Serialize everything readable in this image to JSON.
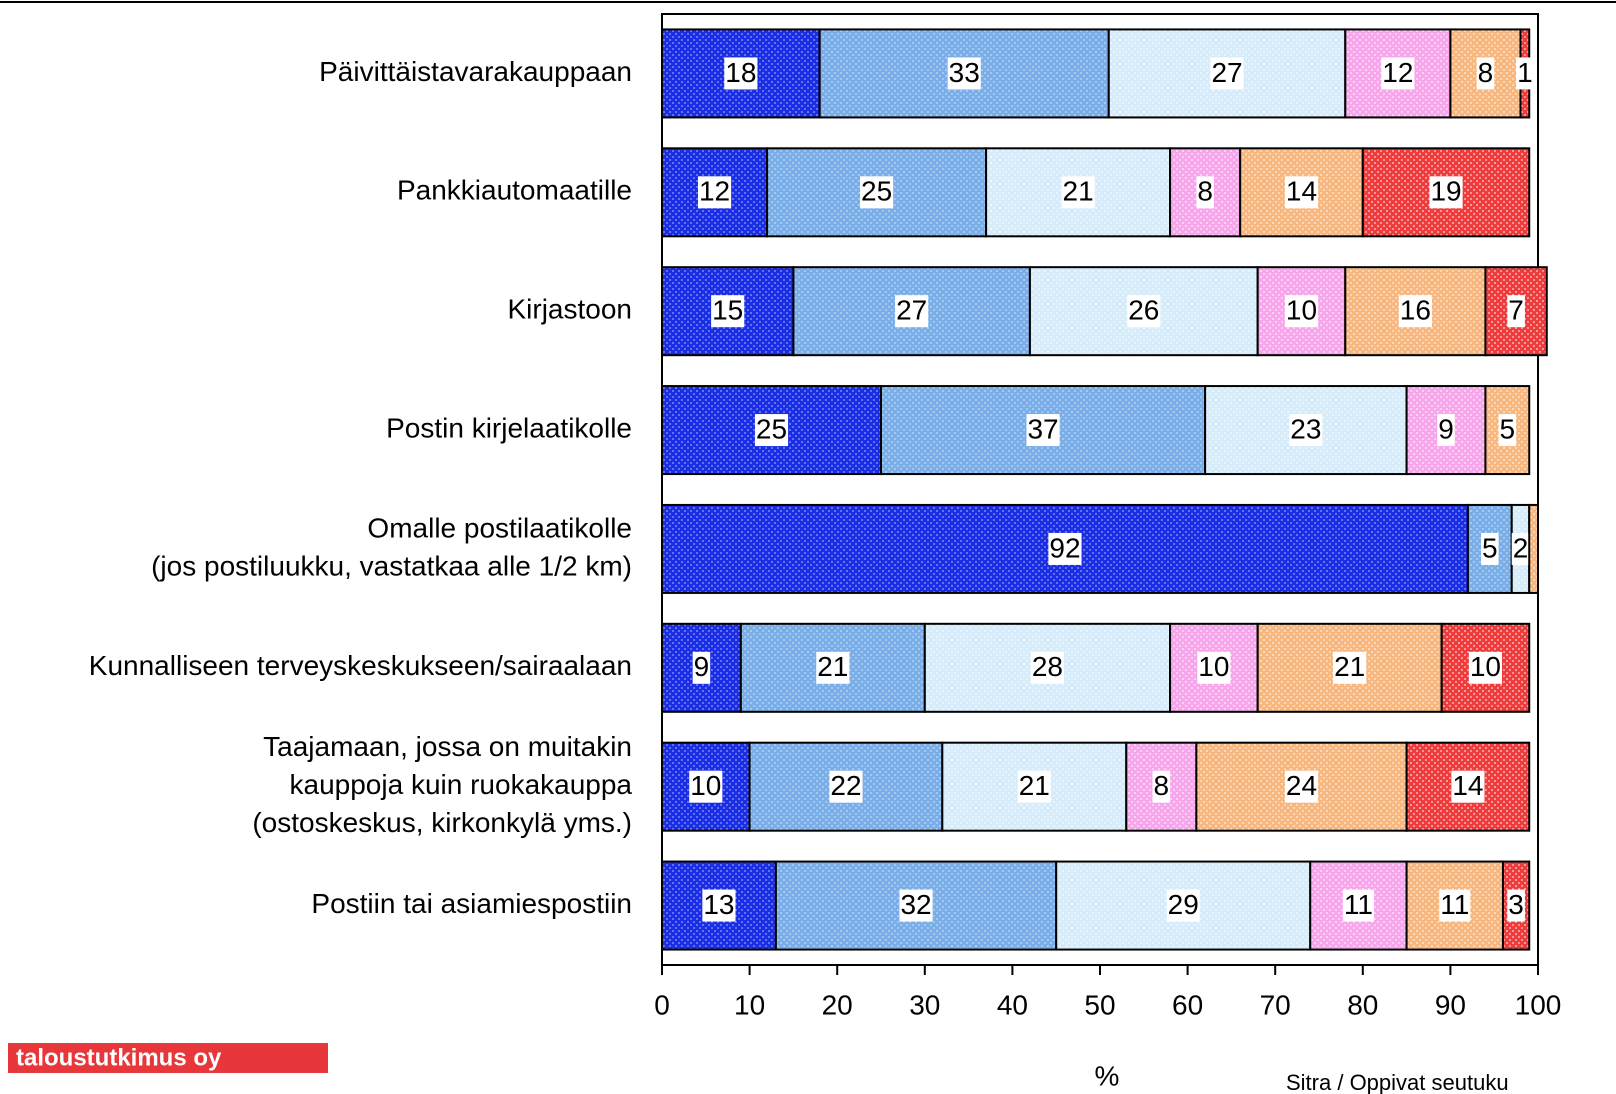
{
  "chart_data": {
    "type": "stacked_barh",
    "categories": [
      [
        "Päivittäistavarakauppaan"
      ],
      [
        "Pankkiautomaatille"
      ],
      [
        "Kirjastoon"
      ],
      [
        "Postin kirjelaatikolle"
      ],
      [
        "Omalle postilaatikolle",
        "(jos postiluukku, vastatkaa alle 1/2 km)"
      ],
      [
        "Kunnalliseen terveyskeskukseen/sairaalaan"
      ],
      [
        "Taajamaan, jossa on muitakin",
        "kauppoja kuin ruokakauppa",
        "(ostoskeskus, kirkonkylä yms.)"
      ],
      [
        "Postiin tai asiamiespostiin"
      ]
    ],
    "series": [
      {
        "color": "#1a2ee6",
        "values": [
          18,
          12,
          15,
          25,
          92,
          9,
          10,
          13
        ]
      },
      {
        "color": "#7aaee8",
        "values": [
          33,
          25,
          27,
          37,
          5,
          21,
          22,
          32
        ]
      },
      {
        "color": "#d6ecfb",
        "values": [
          27,
          21,
          26,
          23,
          2,
          28,
          21,
          29
        ]
      },
      {
        "color": "#f7a6ec",
        "values": [
          12,
          8,
          10,
          9,
          null,
          10,
          8,
          11
        ]
      },
      {
        "color": "#f7b77e",
        "values": [
          8,
          14,
          16,
          5,
          1,
          21,
          24,
          11
        ],
        "value_labels": [
          "8",
          "14",
          "16",
          "5",
          null,
          "21",
          "24",
          "11"
        ]
      },
      {
        "color": "#ee3b3b",
        "values": [
          1,
          19,
          7,
          null,
          null,
          10,
          14,
          3
        ]
      }
    ],
    "xlim": [
      0,
      100
    ],
    "xticks": [
      0,
      10,
      20,
      30,
      40,
      50,
      60,
      70,
      80,
      90,
      100
    ],
    "xlabel": "%",
    "source": "Sitra / Oppivat seutuku",
    "logo": "taloustutkimus oy"
  }
}
